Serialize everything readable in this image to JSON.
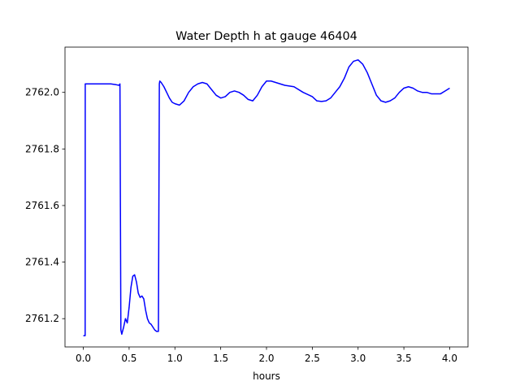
{
  "chart_data": {
    "type": "line",
    "title": "Water Depth h at gauge 46404",
    "xlabel": "hours",
    "ylabel": "",
    "xlim": [
      -0.2,
      4.2
    ],
    "ylim": [
      2761.1,
      2762.16
    ],
    "grid": false,
    "legend": "none",
    "x_ticks": [
      0.0,
      0.5,
      1.0,
      1.5,
      2.0,
      2.5,
      3.0,
      3.5,
      4.0
    ],
    "x_tick_labels": [
      "0.0",
      "0.5",
      "1.0",
      "1.5",
      "2.0",
      "2.5",
      "3.0",
      "3.5",
      "4.0"
    ],
    "y_ticks": [
      2761.2,
      2761.4,
      2761.6,
      2761.8,
      2762.0
    ],
    "y_tick_labels": [
      "2761.2",
      "2761.4",
      "2761.6",
      "2761.8",
      "2762.0"
    ],
    "colors": {
      "series": "#0000ff",
      "axes": "#000000",
      "background": "#ffffff"
    },
    "series": [
      {
        "x": [
          0.0,
          0.02,
          0.021,
          0.1,
          0.2,
          0.3,
          0.36,
          0.39,
          0.4,
          0.41,
          0.42,
          0.44,
          0.46,
          0.48,
          0.5,
          0.52,
          0.54,
          0.56,
          0.58,
          0.6,
          0.62,
          0.64,
          0.66,
          0.68,
          0.7,
          0.72,
          0.74,
          0.76,
          0.78,
          0.8,
          0.82,
          0.83,
          0.835,
          0.85,
          0.88,
          0.91,
          0.94,
          0.97,
          1.0,
          1.05,
          1.1,
          1.15,
          1.2,
          1.25,
          1.3,
          1.35,
          1.4,
          1.45,
          1.5,
          1.55,
          1.6,
          1.65,
          1.7,
          1.75,
          1.8,
          1.85,
          1.9,
          1.95,
          2.0,
          2.05,
          2.1,
          2.15,
          2.2,
          2.3,
          2.4,
          2.5,
          2.55,
          2.6,
          2.65,
          2.7,
          2.75,
          2.8,
          2.85,
          2.9,
          2.95,
          3.0,
          3.05,
          3.1,
          3.15,
          3.2,
          3.25,
          3.3,
          3.35,
          3.4,
          3.45,
          3.5,
          3.55,
          3.6,
          3.65,
          3.7,
          3.75,
          3.8,
          3.85,
          3.9,
          3.95,
          4.0
        ],
        "y": [
          2761.14,
          2761.14,
          2762.03,
          2762.03,
          2762.03,
          2762.03,
          2762.027,
          2762.025,
          2762.03,
          2761.16,
          2761.145,
          2761.17,
          2761.2,
          2761.185,
          2761.24,
          2761.31,
          2761.35,
          2761.355,
          2761.33,
          2761.29,
          2761.275,
          2761.28,
          2761.27,
          2761.23,
          2761.2,
          2761.185,
          2761.18,
          2761.17,
          2761.16,
          2761.155,
          2761.155,
          2762.03,
          2762.04,
          2762.035,
          2762.02,
          2762.0,
          2761.98,
          2761.965,
          2761.96,
          2761.955,
          2761.97,
          2762.0,
          2762.02,
          2762.03,
          2762.035,
          2762.03,
          2762.01,
          2761.99,
          2761.98,
          2761.985,
          2762.0,
          2762.005,
          2762.0,
          2761.99,
          2761.975,
          2761.97,
          2761.99,
          2762.02,
          2762.04,
          2762.04,
          2762.035,
          2762.03,
          2762.025,
          2762.02,
          2762.0,
          2761.985,
          2761.97,
          2761.968,
          2761.97,
          2761.98,
          2762.0,
          2762.02,
          2762.05,
          2762.09,
          2762.11,
          2762.115,
          2762.1,
          2762.07,
          2762.03,
          2761.99,
          2761.97,
          2761.965,
          2761.97,
          2761.98,
          2762.0,
          2762.015,
          2762.02,
          2762.015,
          2762.005,
          2762.0,
          2762.0,
          2761.995,
          2761.995,
          2761.995,
          2762.005,
          2762.015
        ]
      }
    ]
  }
}
